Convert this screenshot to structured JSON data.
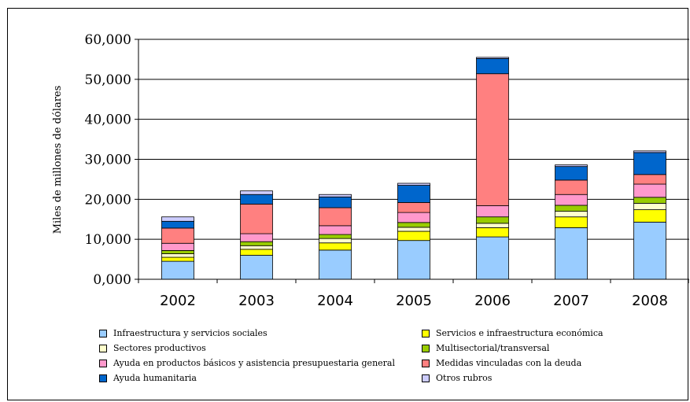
{
  "chart_data": {
    "type": "bar",
    "stacked": true,
    "title": "",
    "ylabel": "Miles de millones de dólares",
    "xlabel": "",
    "ylim": [
      0,
      60000
    ],
    "yticks": [
      0,
      10000,
      20000,
      30000,
      40000,
      50000,
      60000
    ],
    "ytick_labels": [
      "0,000",
      "10,000",
      "20,000",
      "30,000",
      "40,000",
      "50,000",
      "60,000"
    ],
    "grid": true,
    "legend_position": "bottom",
    "categories": [
      "2002",
      "2003",
      "2004",
      "2005",
      "2006",
      "2007",
      "2008"
    ],
    "series": [
      {
        "name": "Infraestructura y servicios sociales",
        "color": "#99ccff",
        "values": [
          4500,
          6000,
          7300,
          9700,
          10600,
          12900,
          14300
        ]
      },
      {
        "name": "Servicios e infraestructura económica",
        "color": "#ffff00",
        "values": [
          1000,
          1500,
          1800,
          2300,
          2300,
          2700,
          3100
        ]
      },
      {
        "name": "Sectores productivos",
        "color": "#ffffcc",
        "values": [
          900,
          900,
          1100,
          1000,
          1100,
          1400,
          1600
        ]
      },
      {
        "name": "Multisectorial/transversal",
        "color": "#99cc00",
        "values": [
          800,
          1000,
          1000,
          1200,
          1600,
          1500,
          1500
        ]
      },
      {
        "name": "Ayuda en productos básicos y asistencia presupuestaria general",
        "color": "#ff99cc",
        "values": [
          1800,
          2000,
          2200,
          2500,
          2800,
          2700,
          3300
        ]
      },
      {
        "name": "Medidas vinculadas con la deuda",
        "color": "#ff8080",
        "values": [
          3800,
          7400,
          4500,
          2500,
          33000,
          3600,
          2400
        ]
      },
      {
        "name": "Ayuda humanitaria",
        "color": "#0066cc",
        "values": [
          1700,
          2400,
          2700,
          4300,
          3800,
          3400,
          5500
        ]
      },
      {
        "name": "Otros rubros",
        "color": "#ccccff",
        "values": [
          1100,
          900,
          600,
          500,
          300,
          400,
          400
        ]
      }
    ]
  }
}
